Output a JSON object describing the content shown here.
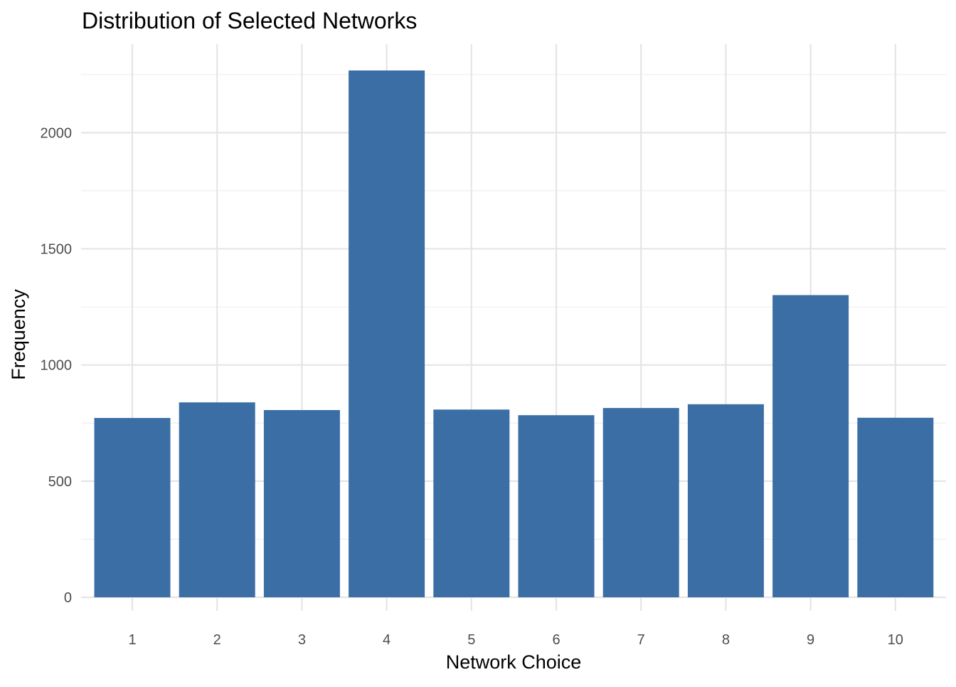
{
  "chart_data": {
    "type": "bar",
    "title": "Distribution of Selected Networks",
    "xlabel": "Network Choice",
    "ylabel": "Frequency",
    "categories": [
      "1",
      "2",
      "3",
      "4",
      "5",
      "6",
      "7",
      "8",
      "9",
      "10"
    ],
    "values": [
      772,
      839,
      806,
      2268,
      808,
      784,
      815,
      831,
      1301,
      773
    ],
    "ylim": [
      0,
      2380
    ],
    "yticks": [
      0,
      500,
      1000,
      1500,
      2000
    ],
    "yticks_labels": [
      "0",
      "500",
      "1000",
      "1500",
      "2000"
    ],
    "grid": true,
    "legend": "none",
    "bar_color": "#3A6EA5",
    "grid_color": "#E5E5E5"
  }
}
